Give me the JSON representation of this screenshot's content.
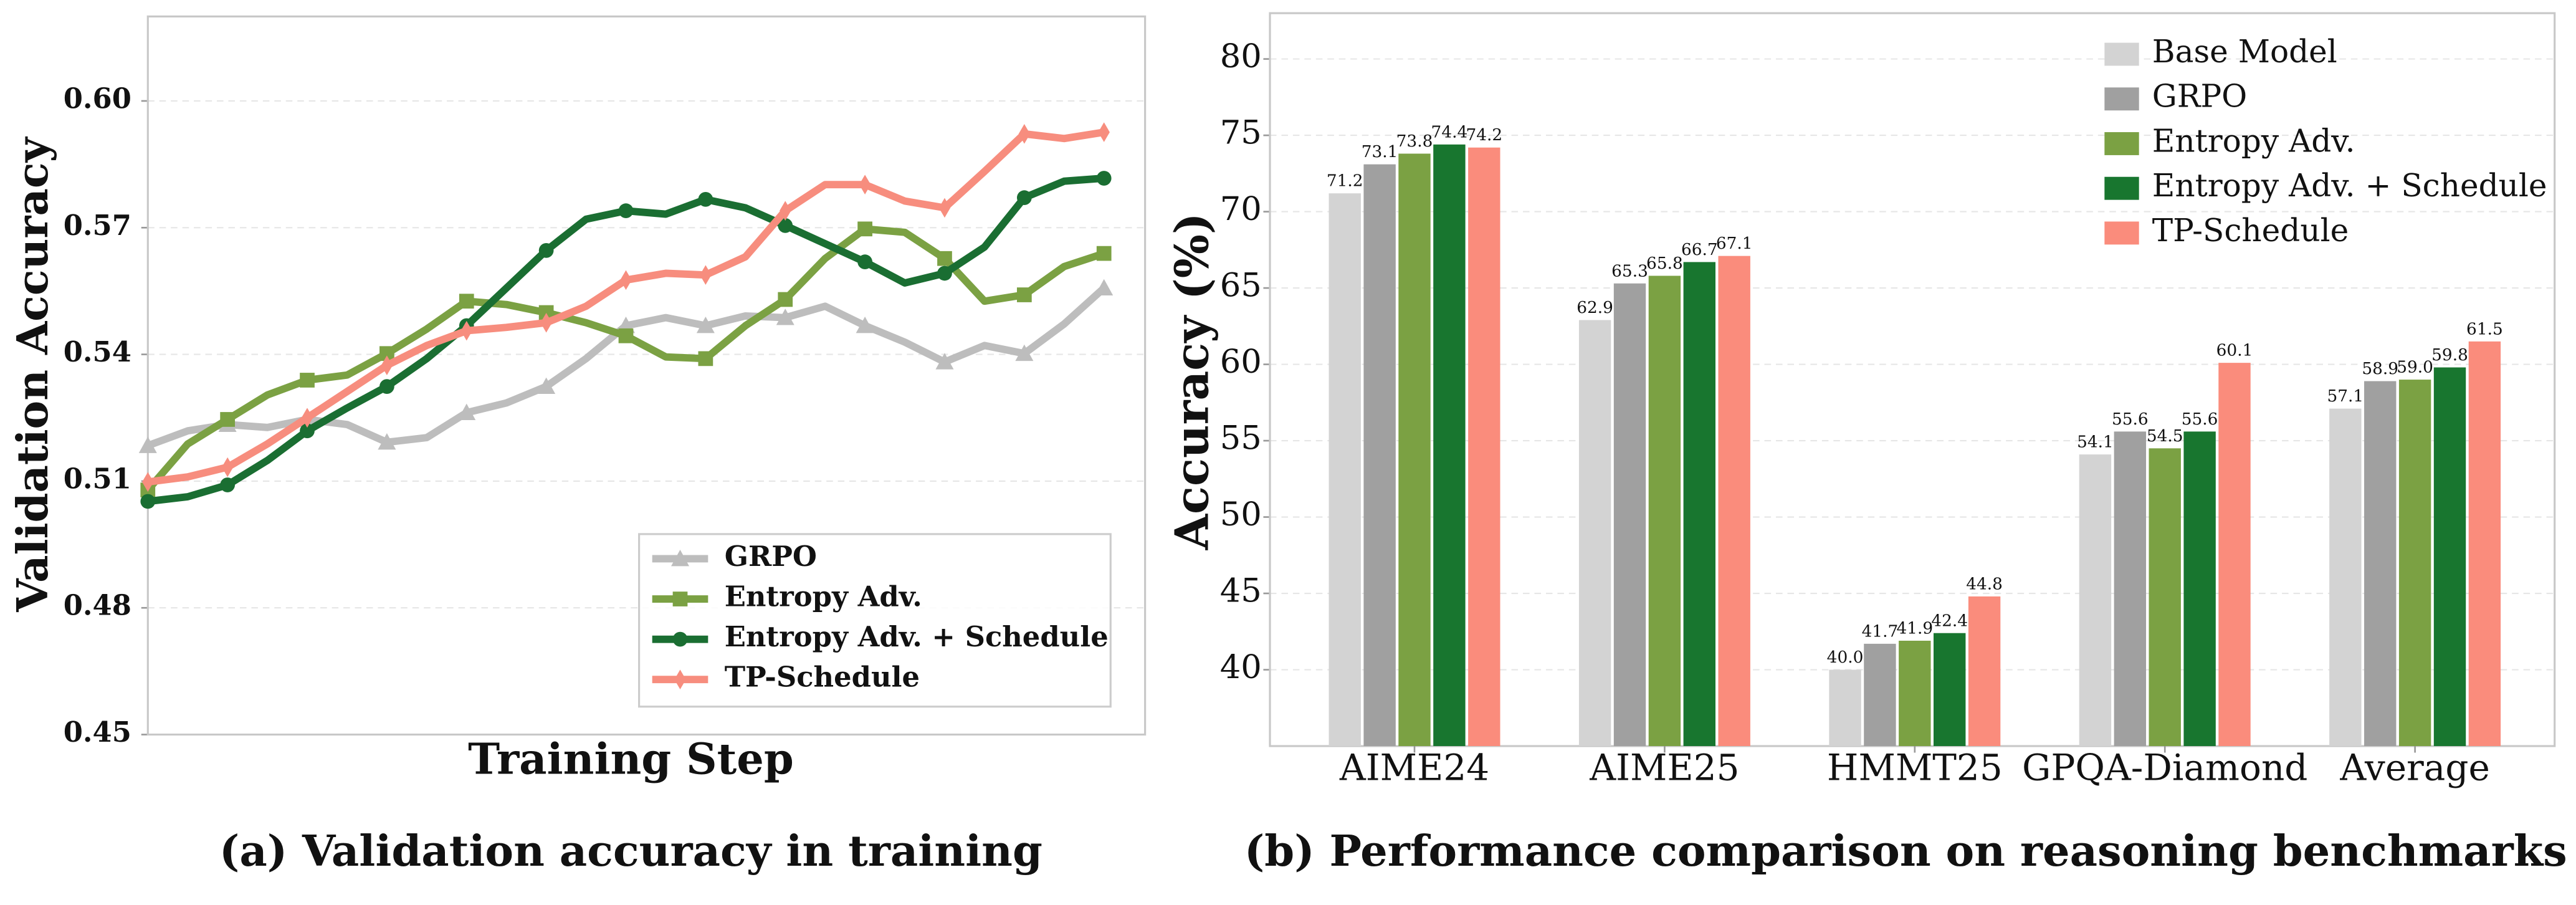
{
  "chart_data": [
    {
      "type": "line",
      "caption": "(a) Validation accuracy in training",
      "ylabel": "Validation Accuracy",
      "xlabel": "Training Step",
      "ylim": [
        0.45,
        0.62
      ],
      "yticks": [
        0.45,
        0.48,
        0.51,
        0.54,
        0.57,
        {
          "value": 0.6,
          "label": "0.60"
        }
      ],
      "grid": true,
      "legend": "lower right",
      "series": [
        {
          "name": "GRPO",
          "color": "#bdbdbd",
          "marker": "triangle",
          "values": [
            0.5184,
            0.5219,
            0.5234,
            0.5227,
            0.5246,
            0.5234,
            0.5192,
            0.5203,
            0.5262,
            0.5285,
            0.5324,
            0.539,
            0.5468,
            0.5487,
            0.5468,
            0.5491,
            0.5487,
            0.5514,
            0.5468,
            0.5429,
            0.5382,
            0.5421,
            0.5402,
            0.5472,
            0.5557
          ]
        },
        {
          "name": "Entropy Adv.",
          "color": "#7ba143",
          "marker": "square",
          "values": [
            0.5079,
            0.5188,
            0.5246,
            0.5304,
            0.5339,
            0.5351,
            0.5402,
            0.546,
            0.5526,
            0.5518,
            0.5499,
            0.5475,
            0.5444,
            0.5394,
            0.539,
            0.5468,
            0.553,
            0.5627,
            0.5697,
            0.5689,
            0.5627,
            0.5526,
            0.5541,
            0.5608,
            0.5639
          ]
        },
        {
          "name": "Entropy Adv. + Schedule",
          "color": "#1a6e32",
          "marker": "circle",
          "values": [
            0.5052,
            0.5063,
            0.5091,
            0.5149,
            0.5219,
            0.5273,
            0.5324,
            0.539,
            0.5468,
            0.5557,
            0.5646,
            0.572,
            0.574,
            0.5732,
            0.5767,
            0.5747,
            0.5705,
            0.5662,
            0.5619,
            0.5569,
            0.5592,
            0.5654,
            0.5771,
            0.581,
            0.5817
          ]
        },
        {
          "name": "TP-Schedule",
          "color": "#f78d7e",
          "marker": "diamond",
          "values": [
            0.5098,
            0.511,
            0.5133,
            0.5188,
            0.525,
            0.5312,
            0.5374,
            0.5421,
            0.5456,
            0.5464,
            0.5475,
            0.5514,
            0.5576,
            0.5592,
            0.5588,
            0.5631,
            0.574,
            0.5802,
            0.5802,
            0.5763,
            0.5747,
            0.5833,
            0.5922,
            0.5911,
            0.5926
          ]
        }
      ]
    },
    {
      "type": "bar",
      "caption": "(b) Performance comparison on reasoning benchmarks",
      "ylabel": "Accuracy (%)",
      "categories": [
        "AIME24",
        "AIME25",
        "HMMT25",
        "GPQA-Diamond",
        "Average"
      ],
      "ylim": [
        35,
        83
      ],
      "yticks": [
        40,
        45,
        50,
        55,
        60,
        65,
        70,
        75,
        80
      ],
      "grid": true,
      "legend": "upper right",
      "series": [
        {
          "name": "Base Model",
          "color": "#d3d3d3",
          "values": [
            71.2,
            62.9,
            40.0,
            54.1,
            57.1
          ],
          "value_labels": [
            "71.2",
            "62.9",
            "40.0",
            "54.1",
            "57.1"
          ]
        },
        {
          "name": "GRPO",
          "color": "#a0a0a0",
          "values": [
            73.1,
            65.3,
            41.7,
            55.6,
            58.9
          ],
          "value_labels": [
            "73.1",
            "65.3",
            "41.7",
            "55.6",
            "58.9"
          ]
        },
        {
          "name": "Entropy Adv.",
          "color": "#7ba143",
          "values": [
            73.8,
            65.8,
            41.9,
            54.5,
            59.0
          ],
          "value_labels": [
            "73.8",
            "65.8",
            "41.9",
            "54.5",
            "59.0"
          ]
        },
        {
          "name": "Entropy Adv. + Schedule",
          "color": "#18762f",
          "values": [
            74.4,
            66.7,
            42.4,
            55.6,
            59.8
          ],
          "value_labels": [
            "74.4",
            "66.7",
            "42.4",
            "55.6",
            "59.8"
          ]
        },
        {
          "name": "TP-Schedule",
          "color": "#fa8c7c",
          "values": [
            74.2,
            67.1,
            44.8,
            60.1,
            61.5
          ],
          "value_labels": [
            "74.2",
            "67.1",
            "44.8",
            "60.1",
            "61.5"
          ]
        }
      ]
    }
  ]
}
